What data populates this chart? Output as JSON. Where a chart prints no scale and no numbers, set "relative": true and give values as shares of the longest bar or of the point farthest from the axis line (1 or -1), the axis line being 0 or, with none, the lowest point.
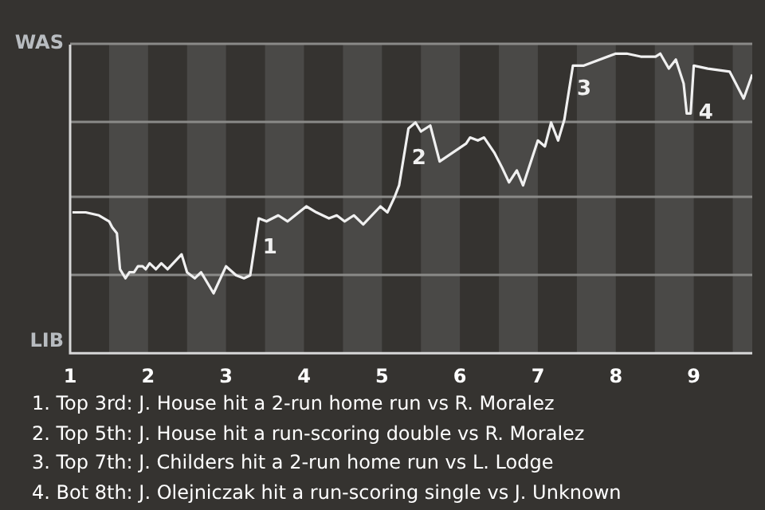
{
  "chart_data": {
    "type": "line",
    "relative": true,
    "x": [
      1.03,
      1.2,
      1.37,
      1.5,
      1.54,
      1.6,
      1.64,
      1.71,
      1.76,
      1.82,
      1.87,
      1.93,
      1.97,
      2.02,
      2.1,
      2.17,
      2.25,
      2.43,
      2.5,
      2.6,
      2.68,
      2.84,
      3,
      3.13,
      3.23,
      3.31,
      3.42,
      3.52,
      3.67,
      3.79,
      4.03,
      4.16,
      4.32,
      4.42,
      4.52,
      4.64,
      4.76,
      4.98,
      5.07,
      5.16,
      5.22,
      5.34,
      5.43,
      5.5,
      5.62,
      5.74,
      6.08,
      6.13,
      6.23,
      6.31,
      6.44,
      6.54,
      6.63,
      6.73,
      6.81,
      7,
      7.09,
      7.17,
      7.26,
      7.34,
      7.45,
      7.59,
      8,
      8.14,
      8.32,
      8.51,
      8.57,
      8.68,
      8.77,
      8.87,
      8.91,
      8.96,
      9,
      9.18,
      9.46,
      9.64,
      9.75
    ],
    "series": [
      {
        "color": "#f0f0f0",
        "values": [
          0.47,
          0.47,
          0.46,
          0.44,
          0.42,
          0.4,
          0.28,
          0.25,
          0.27,
          0.27,
          0.29,
          0.29,
          0.28,
          0.3,
          0.28,
          0.3,
          0.28,
          0.33,
          0.27,
          0.25,
          0.27,
          0.2,
          0.29,
          0.26,
          0.25,
          0.26,
          0.45,
          0.44,
          0.46,
          0.44,
          0.49,
          0.47,
          0.45,
          0.46,
          0.44,
          0.46,
          0.43,
          0.49,
          0.47,
          0.52,
          0.56,
          0.75,
          0.77,
          0.74,
          0.76,
          0.64,
          0.7,
          0.72,
          0.71,
          0.72,
          0.67,
          0.62,
          0.57,
          0.61,
          0.56,
          0.71,
          0.69,
          0.77,
          0.71,
          0.78,
          0.96,
          0.96,
          1,
          1,
          0.99,
          0.99,
          1,
          0.95,
          0.98,
          0.9,
          0.8,
          0.8,
          0.96,
          0.95,
          0.94,
          0.85,
          0.93
        ]
      }
    ],
    "xlim": [
      1,
      9.75
    ],
    "xticks": [
      1,
      2,
      3,
      4,
      5,
      6,
      7,
      8,
      9
    ],
    "legend": false,
    "marker": "none",
    "line_style": "solid",
    "ref_lines": [
      {
        "axis": "y",
        "value": 1.03,
        "label": "WAS",
        "color": "#8a8a88"
      },
      {
        "axis": "y",
        "value": 0.77,
        "label": null,
        "color": "#8a8a88"
      },
      {
        "axis": "y",
        "value": 0.52,
        "label": null,
        "color": "#8a8a88"
      },
      {
        "axis": "y",
        "value": 0.26,
        "label": null,
        "color": "#8a8a88"
      }
    ],
    "ylabel": "LIB",
    "bands": [
      {
        "axis": "x",
        "from": 1.5,
        "to": 2,
        "color": "#4a4947"
      },
      {
        "axis": "x",
        "from": 2.5,
        "to": 3,
        "color": "#4a4947"
      },
      {
        "axis": "x",
        "from": 3.5,
        "to": 4,
        "color": "#4a4947"
      },
      {
        "axis": "x",
        "from": 4.5,
        "to": 5,
        "color": "#4a4947"
      },
      {
        "axis": "x",
        "from": 5.5,
        "to": 6,
        "color": "#4a4947"
      },
      {
        "axis": "x",
        "from": 6.5,
        "to": 7,
        "color": "#4a4947"
      },
      {
        "axis": "x",
        "from": 7.5,
        "to": 8,
        "color": "#4a4947"
      },
      {
        "axis": "x",
        "from": 8.5,
        "to": 9,
        "color": "#4a4947"
      },
      {
        "axis": "x",
        "from": 9.5,
        "to": 9.75,
        "color": "#4a4947"
      }
    ],
    "annotations": [
      {
        "text": "1",
        "x": 3.37,
        "y": 0.35
      },
      {
        "text": "2",
        "x": 5.28,
        "y": 0.65
      },
      {
        "text": "3",
        "x": 7.4,
        "y": 0.88
      },
      {
        "text": "4",
        "x": 8.96,
        "y": 0.8
      },
      "1. Top 3rd: J. House hit a 2-run home run vs R. Moralez",
      "2. Top 5th: J. House hit a run-scoring double vs R. Moralez",
      "3. Top 7th: J. Childers hit a 2-run home run vs L. Lodge",
      "4. Bot 8th: J. Olejniczak hit a run-scoring single vs J. Unknown"
    ]
  }
}
